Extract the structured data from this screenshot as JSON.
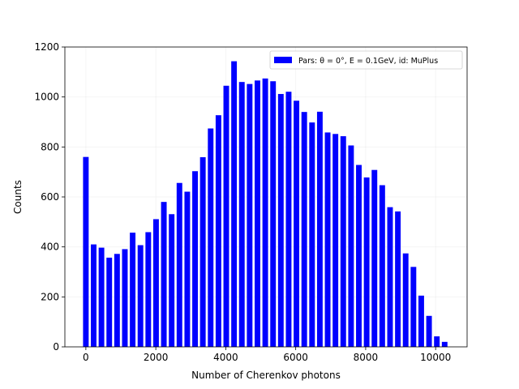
{
  "chart_data": {
    "type": "bar",
    "xlabel": "Number of Cherenkov photons",
    "ylabel": "Counts",
    "xlim": [
      -600,
      10900
    ],
    "ylim": [
      0,
      1200
    ],
    "xticks": [
      0,
      2000,
      4000,
      6000,
      8000,
      10000
    ],
    "yticks": [
      0,
      200,
      400,
      600,
      800,
      1000,
      1200
    ],
    "grid": true,
    "legend_placement": "top-right",
    "color": "#0000ff",
    "bin_width": 223,
    "series": [
      {
        "name": "Pars: θ = 0°, E = 0.1GeV, id: MuPlus",
        "x": [
          0,
          223,
          446,
          669,
          892,
          1115,
          1338,
          1561,
          1784,
          2007,
          2230,
          2453,
          2676,
          2899,
          3122,
          3345,
          3568,
          3791,
          4014,
          4237,
          4460,
          4683,
          4906,
          5129,
          5352,
          5575,
          5798,
          6021,
          6244,
          6467,
          6690,
          6913,
          7136,
          7359,
          7582,
          7805,
          8028,
          8251,
          8474,
          8697,
          8920,
          9143,
          9366,
          9589,
          9812,
          10035,
          10258
        ],
        "values": [
          760,
          410,
          397,
          357,
          372,
          391,
          457,
          407,
          459,
          511,
          580,
          531,
          656,
          621,
          703,
          759,
          874,
          927,
          1045,
          1143,
          1060,
          1052,
          1066,
          1074,
          1063,
          1012,
          1021,
          985,
          940,
          898,
          941,
          858,
          852,
          843,
          806,
          728,
          678,
          708,
          647,
          559,
          542,
          374,
          320,
          205,
          124,
          42,
          20
        ]
      }
    ]
  }
}
